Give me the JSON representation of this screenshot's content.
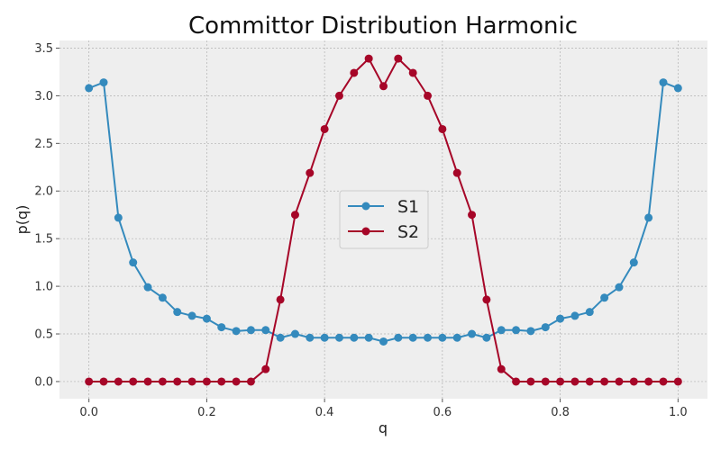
{
  "chart_data": {
    "type": "line",
    "title": "Committor Distribution Harmonic",
    "xlabel": "q",
    "ylabel": "p(q)",
    "xlim": [
      -0.05,
      1.05
    ],
    "ylim": [
      -0.18,
      3.58
    ],
    "xticks": [
      0.0,
      0.2,
      0.4,
      0.6,
      0.8,
      1.0
    ],
    "xtick_labels": [
      "0.0",
      "0.2",
      "0.4",
      "0.6",
      "0.8",
      "1.0"
    ],
    "yticks": [
      0.0,
      0.5,
      1.0,
      1.5,
      2.0,
      2.5,
      3.0,
      3.5
    ],
    "ytick_labels": [
      "0.0",
      "0.5",
      "1.0",
      "1.5",
      "2.0",
      "2.5",
      "3.0",
      "3.5"
    ],
    "grid": true,
    "legend_position": "center",
    "x": [
      0.0,
      0.025,
      0.05,
      0.075,
      0.1,
      0.125,
      0.15,
      0.175,
      0.2,
      0.225,
      0.25,
      0.275,
      0.3,
      0.325,
      0.35,
      0.375,
      0.4,
      0.425,
      0.45,
      0.475,
      0.5,
      0.525,
      0.55,
      0.575,
      0.6,
      0.625,
      0.65,
      0.675,
      0.7,
      0.725,
      0.75,
      0.775,
      0.8,
      0.825,
      0.85,
      0.875,
      0.9,
      0.925,
      0.95,
      0.975,
      1.0
    ],
    "series": [
      {
        "name": "S1",
        "color": "#348abd",
        "values": [
          3.08,
          3.14,
          1.72,
          1.25,
          0.99,
          0.88,
          0.73,
          0.69,
          0.66,
          0.57,
          0.53,
          0.54,
          0.54,
          0.46,
          0.5,
          0.46,
          0.46,
          0.46,
          0.46,
          0.46,
          0.42,
          0.46,
          0.46,
          0.46,
          0.46,
          0.46,
          0.5,
          0.46,
          0.54,
          0.54,
          0.53,
          0.57,
          0.66,
          0.69,
          0.73,
          0.88,
          0.99,
          1.25,
          1.72,
          3.14,
          3.08
        ]
      },
      {
        "name": "S2",
        "color": "#a60628",
        "values": [
          0.0,
          0.0,
          0.0,
          0.0,
          0.0,
          0.0,
          0.0,
          0.0,
          0.0,
          0.0,
          0.0,
          0.0,
          0.13,
          0.86,
          1.75,
          2.19,
          2.65,
          3.0,
          3.24,
          3.39,
          3.1,
          3.39,
          3.24,
          3.0,
          2.65,
          2.19,
          1.75,
          0.86,
          0.13,
          0.0,
          0.0,
          0.0,
          0.0,
          0.0,
          0.0,
          0.0,
          0.0,
          0.0,
          0.0,
          0.0,
          0.0
        ]
      }
    ]
  }
}
